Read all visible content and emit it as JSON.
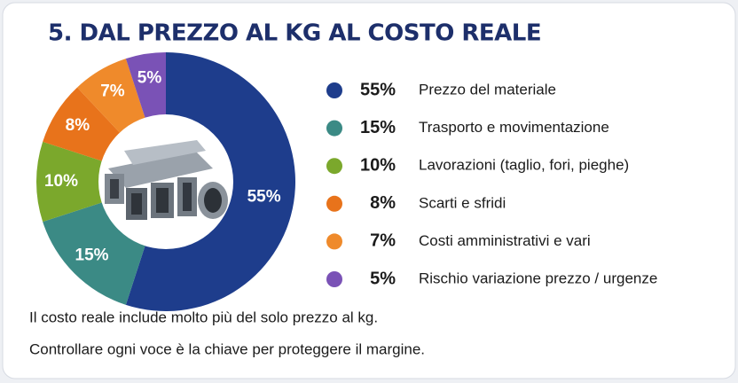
{
  "chart_data": {
    "type": "donut",
    "title": "5. DAL PREZZO AL KG AL COSTO REALE",
    "categories": [
      "Prezzo del materiale",
      "Trasporto e movimentazione",
      "Lavorazioni (taglio, fori, pieghe)",
      "Scarti e sfridi",
      "Costi amministrativi e vari",
      "Rischio variazione prezzo / urgenze"
    ],
    "values": [
      55,
      15,
      10,
      8,
      7,
      5
    ],
    "value_labels": [
      "55%",
      "15%",
      "10%",
      "8%",
      "7%",
      "5%"
    ],
    "colors": [
      "#1e3d8c",
      "#3b8a85",
      "#7ba82c",
      "#e8731b",
      "#ef8a2b",
      "#7a52b6"
    ],
    "notes": [
      "Il costo reale include molto più del solo prezzo al kg.",
      "Controllare ogni voce è la chiave per proteggere il margine."
    ]
  }
}
